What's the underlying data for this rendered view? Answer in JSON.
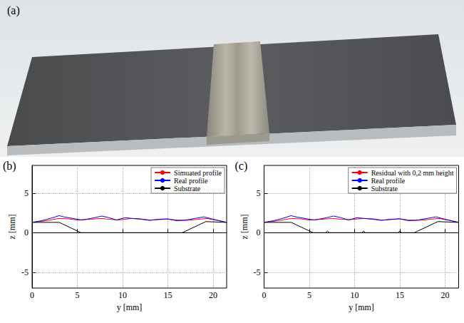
{
  "photo": {
    "panel": "(a)"
  },
  "chart_data": [
    {
      "type": "line",
      "panel": "(b)",
      "x_label": "y [mm]",
      "y_label": "z [mm]",
      "xlim": [
        0,
        21.5
      ],
      "xticks": [
        0,
        5,
        10,
        15,
        20
      ],
      "ylim": [
        -7,
        8.5
      ],
      "yticks": [
        -5,
        0,
        5
      ],
      "grid": true,
      "legend": "top-right",
      "series": [
        {
          "name": "Simuated profile",
          "color": "#ff0000",
          "x": [
            0,
            1.5,
            3,
            4,
            5,
            6.5,
            7.5,
            8.5,
            9.5,
            11,
            12,
            13,
            14,
            15,
            16,
            17,
            18,
            19.3,
            20.5,
            21.5
          ],
          "values": [
            1.3,
            1.5,
            1.8,
            1.75,
            1.6,
            1.7,
            1.8,
            1.7,
            1.6,
            1.8,
            1.75,
            1.6,
            1.65,
            1.7,
            1.6,
            1.55,
            1.65,
            1.8,
            1.55,
            1.3
          ]
        },
        {
          "name": "Real profile",
          "color": "#0000ff",
          "x": [
            0,
            1,
            2,
            3,
            3.5,
            4.5,
            5.5,
            6.5,
            7.7,
            8.5,
            9.3,
            10.3,
            11,
            12,
            13,
            14,
            15,
            16,
            17,
            18,
            19,
            20,
            21.5
          ],
          "values": [
            1.3,
            1.5,
            1.8,
            2.15,
            2.0,
            1.8,
            1.6,
            1.8,
            2.1,
            1.9,
            1.6,
            1.9,
            1.8,
            1.7,
            1.55,
            1.7,
            1.75,
            1.5,
            1.6,
            1.8,
            2.0,
            1.7,
            1.3
          ]
        },
        {
          "name": "Substrate",
          "color": "#000000",
          "x": [
            0,
            3,
            5.4,
            16.6,
            19.2,
            21.5
          ],
          "values": [
            1.3,
            1.3,
            0,
            0,
            1.4,
            1.3
          ]
        }
      ]
    },
    {
      "type": "line",
      "panel": "(c)",
      "x_label": "y [mm]",
      "y_label": "z [mm]",
      "xlim": [
        0,
        21.5
      ],
      "xticks": [
        0,
        5,
        10,
        15,
        20
      ],
      "ylim": [
        -7,
        8.5
      ],
      "yticks": [
        -5,
        0,
        5
      ],
      "grid": true,
      "legend": "top-right",
      "series": [
        {
          "name": "Residual with 0,2 mm height",
          "color": "#ff0000",
          "x": [
            0,
            1.5,
            3,
            4,
            5,
            6.5,
            7.5,
            8.5,
            9.5,
            11,
            12,
            13,
            14,
            15,
            16,
            17,
            18,
            19.3,
            20.5,
            21.5
          ],
          "values": [
            1.3,
            1.5,
            1.8,
            1.75,
            1.6,
            1.7,
            1.8,
            1.7,
            1.65,
            1.8,
            1.75,
            1.6,
            1.65,
            1.75,
            1.6,
            1.55,
            1.65,
            1.8,
            1.55,
            1.3
          ]
        },
        {
          "name": "Real profile",
          "color": "#0000ff",
          "x": [
            0,
            1,
            2,
            3,
            3.5,
            4.5,
            5.5,
            6.5,
            7.7,
            8.5,
            9.3,
            10.3,
            11,
            12,
            13,
            14,
            15,
            16,
            17,
            18,
            19,
            20,
            21.5
          ],
          "values": [
            1.3,
            1.5,
            1.8,
            2.15,
            2.0,
            1.8,
            1.6,
            1.8,
            2.1,
            1.9,
            1.6,
            1.9,
            1.8,
            1.7,
            1.55,
            1.7,
            1.75,
            1.5,
            1.6,
            1.8,
            2.0,
            1.7,
            1.3
          ]
        },
        {
          "name": "Substrate",
          "color": "#000000",
          "x": [
            0,
            3,
            5.4,
            6.8,
            7,
            7.2,
            10.8,
            11,
            11.2,
            14.8,
            15,
            15.2,
            16.6,
            19.2,
            21.5
          ],
          "values": [
            1.3,
            1.3,
            0,
            0,
            0.2,
            0,
            0,
            0.2,
            0,
            0,
            0.2,
            0,
            0,
            1.4,
            1.3
          ]
        }
      ]
    }
  ]
}
